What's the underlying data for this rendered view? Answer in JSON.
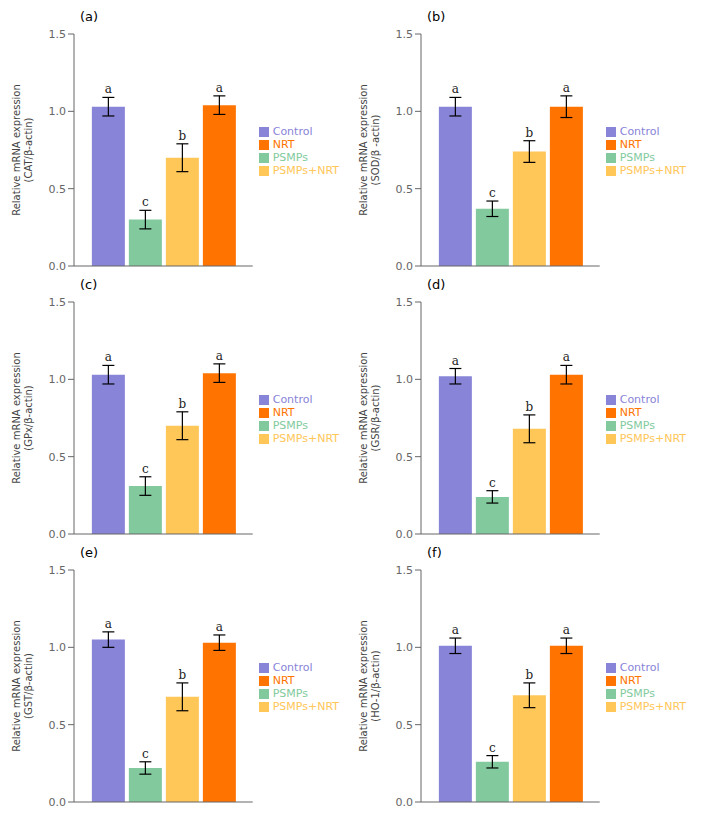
{
  "chart_data": [
    {
      "type": "bar",
      "title": "(a)",
      "y_label": "Relative mRNA expression\n(CAT/β-actin)",
      "categories": [
        null
      ],
      "series": [
        {
          "name": "Control",
          "color": "#8884d8",
          "values": [
            1.03
          ],
          "errors": [
            0.06
          ],
          "letters": [
            "a"
          ]
        },
        {
          "name": "PSMPs",
          "color": "#82ca9d",
          "values": [
            0.3
          ],
          "errors": [
            0.06
          ],
          "letters": [
            "c"
          ]
        },
        {
          "name": "PSMPs+NRT",
          "color": "#ffc658",
          "values": [
            0.7
          ],
          "errors": [
            0.09
          ],
          "letters": [
            "b"
          ]
        },
        {
          "name": "NRT",
          "color": "#ff7300",
          "values": [
            1.04
          ],
          "errors": [
            0.06
          ],
          "letters": [
            "a"
          ]
        }
      ],
      "ylim": [
        0.0,
        1.5
      ],
      "yticks": [
        {
          "value": 0,
          "label": "0.0"
        },
        0.5,
        {
          "value": 1,
          "label": "1.0"
        },
        1.5
      ],
      "grid": false,
      "legend": "right",
      "tick_labels": "y"
    },
    {
      "type": "bar",
      "title": "(b)",
      "y_label": "Relative mRNA expression\n(SOD/β -actin)",
      "categories": [
        null
      ],
      "series": [
        {
          "name": "Control",
          "color": "#8884d8",
          "values": [
            1.03
          ],
          "errors": [
            0.06
          ],
          "letters": [
            "a"
          ]
        },
        {
          "name": "PSMPs",
          "color": "#82ca9d",
          "values": [
            0.37
          ],
          "errors": [
            0.05
          ],
          "letters": [
            "c"
          ]
        },
        {
          "name": "PSMPs+NRT",
          "color": "#ffc658",
          "values": [
            0.74
          ],
          "errors": [
            0.07
          ],
          "letters": [
            "b"
          ]
        },
        {
          "name": "NRT",
          "color": "#ff7300",
          "values": [
            1.03
          ],
          "errors": [
            0.07
          ],
          "letters": [
            "a"
          ]
        }
      ],
      "ylim": [
        0.0,
        1.5
      ],
      "yticks": [
        {
          "value": 0,
          "label": "0.0"
        },
        0.5,
        {
          "value": 1,
          "label": "1.0"
        },
        1.5
      ],
      "grid": false,
      "legend": "right",
      "tick_labels": "y"
    },
    {
      "type": "bar",
      "title": "(c)",
      "y_label": "Relative mRNA expression\n(GPx/β-actin)",
      "categories": [
        null
      ],
      "series": [
        {
          "name": "Control",
          "color": "#8884d8",
          "values": [
            1.03
          ],
          "errors": [
            0.06
          ],
          "letters": [
            "a"
          ]
        },
        {
          "name": "PSMPs",
          "color": "#82ca9d",
          "values": [
            0.31
          ],
          "errors": [
            0.06
          ],
          "letters": [
            "c"
          ]
        },
        {
          "name": "PSMPs+NRT",
          "color": "#ffc658",
          "values": [
            0.7
          ],
          "errors": [
            0.09
          ],
          "letters": [
            "b"
          ]
        },
        {
          "name": "NRT",
          "color": "#ff7300",
          "values": [
            1.04
          ],
          "errors": [
            0.06
          ],
          "letters": [
            "a"
          ]
        }
      ],
      "ylim": [
        0.0,
        1.5
      ],
      "yticks": [
        {
          "value": 0,
          "label": "0.0"
        },
        0.5,
        {
          "value": 1,
          "label": "1.0"
        },
        1.5
      ],
      "grid": false,
      "legend": "right",
      "tick_labels": "y"
    },
    {
      "type": "bar",
      "title": "(d)",
      "y_label": "Relative mRNA expression\n(GSR/β-actin)",
      "categories": [
        null
      ],
      "series": [
        {
          "name": "Control",
          "color": "#8884d8",
          "values": [
            1.02
          ],
          "errors": [
            0.05
          ],
          "letters": [
            "a"
          ]
        },
        {
          "name": "PSMPs",
          "color": "#82ca9d",
          "values": [
            0.24
          ],
          "errors": [
            0.04
          ],
          "letters": [
            "c"
          ]
        },
        {
          "name": "PSMPs+NRT",
          "color": "#ffc658",
          "values": [
            0.68
          ],
          "errors": [
            0.09
          ],
          "letters": [
            "b"
          ]
        },
        {
          "name": "NRT",
          "color": "#ff7300",
          "values": [
            1.03
          ],
          "errors": [
            0.06
          ],
          "letters": [
            "a"
          ]
        }
      ],
      "ylim": [
        0.0,
        1.5
      ],
      "yticks": [
        {
          "value": 0,
          "label": "0.0"
        },
        0.5,
        {
          "value": 1,
          "label": "1.0"
        },
        1.5
      ],
      "grid": false,
      "legend": "right",
      "tick_labels": "y"
    },
    {
      "type": "bar",
      "title": "(e)",
      "y_label": "Relative mRNA expression\n(GST/β-actin)",
      "categories": [
        null
      ],
      "series": [
        {
          "name": "Control",
          "color": "#8884d8",
          "values": [
            1.05
          ],
          "errors": [
            0.05
          ],
          "letters": [
            "a"
          ]
        },
        {
          "name": "PSMPs",
          "color": "#82ca9d",
          "values": [
            0.22
          ],
          "errors": [
            0.04
          ],
          "letters": [
            "c"
          ]
        },
        {
          "name": "PSMPs+NRT",
          "color": "#ffc658",
          "values": [
            0.68
          ],
          "errors": [
            0.09
          ],
          "letters": [
            "b"
          ]
        },
        {
          "name": "NRT",
          "color": "#ff7300",
          "values": [
            1.03
          ],
          "errors": [
            0.05
          ],
          "letters": [
            "a"
          ]
        }
      ],
      "ylim": [
        0.0,
        1.5
      ],
      "yticks": [
        {
          "value": 0,
          "label": "0.0"
        },
        0.5,
        {
          "value": 1,
          "label": "1.0"
        },
        1.5
      ],
      "grid": false,
      "legend": "right",
      "tick_labels": "y"
    },
    {
      "type": "bar",
      "title": "(f)",
      "y_label": "Relative mRNA expression\n(HO-1/β-actin)",
      "categories": [
        null
      ],
      "series": [
        {
          "name": "Control",
          "color": "#8884d8",
          "values": [
            1.01
          ],
          "errors": [
            0.05
          ],
          "letters": [
            "a"
          ]
        },
        {
          "name": "PSMPs",
          "color": "#82ca9d",
          "values": [
            0.26
          ],
          "errors": [
            0.04
          ],
          "letters": [
            "c"
          ]
        },
        {
          "name": "PSMPs+NRT",
          "color": "#ffc658",
          "values": [
            0.69
          ],
          "errors": [
            0.08
          ],
          "letters": [
            "b"
          ]
        },
        {
          "name": "NRT",
          "color": "#ff7300",
          "values": [
            1.01
          ],
          "errors": [
            0.05
          ],
          "letters": [
            "a"
          ]
        }
      ],
      "ylim": [
        0.0,
        1.5
      ],
      "yticks": [
        {
          "value": 0,
          "label": "0.0"
        },
        0.5,
        {
          "value": 1,
          "label": "1.0"
        },
        1.5
      ],
      "grid": false,
      "legend": "right",
      "tick_labels": "y"
    }
  ]
}
